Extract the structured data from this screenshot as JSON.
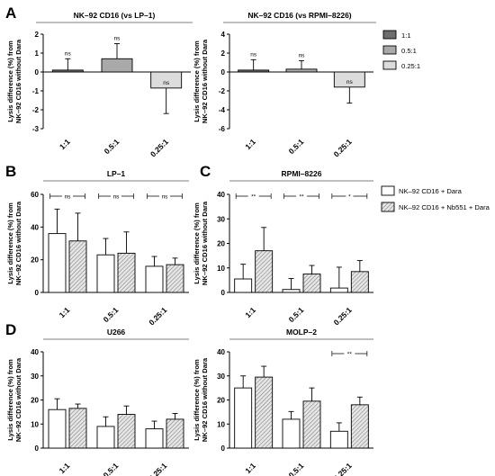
{
  "panel_letters": [
    "A",
    "B",
    "C",
    "D"
  ],
  "colors": {
    "dark": "#6e6e6e",
    "mid": "#a9a9a9",
    "light": "#dcdcdc",
    "open": "#ffffff",
    "hatch": "#cfcfcf"
  },
  "legend_A": [
    {
      "label": "1:1",
      "fill": "dark"
    },
    {
      "label": "0.5:1",
      "fill": "mid"
    },
    {
      "label": "0.25:1",
      "fill": "light"
    }
  ],
  "legend_BCD": [
    {
      "label": "NK–92 CD16 + Dara",
      "fill": "open"
    },
    {
      "label": "NK–92 CD16 + Nb551 + Dara",
      "fill": "hatch"
    }
  ],
  "chart_data": [
    {
      "id": "A1",
      "type": "bar",
      "title": "NK–92 CD16 (vs LP–1)",
      "ylabel": [
        "Lysis difference (%) from",
        "NK–92 CD16 without Dara"
      ],
      "ylim": [
        -3,
        2
      ],
      "yticks": [
        2,
        1,
        0,
        -1,
        -2,
        -3
      ],
      "categories": [
        "1:1",
        "0.5:1",
        "0.25:1"
      ],
      "series": [
        {
          "values": [
            0.1,
            0.7,
            -0.85
          ],
          "errors": [
            0.6,
            0.8,
            1.35
          ],
          "fills": [
            "dark",
            "mid",
            "light"
          ]
        }
      ],
      "significance": [
        "ns",
        "ns",
        "ns"
      ]
    },
    {
      "id": "A2",
      "type": "bar",
      "title": "NK–92 CD16 (vs RPMI–8226)",
      "ylabel": [
        "Lysis difference (%) from",
        "NK–92 CD16 without Dara"
      ],
      "ylim": [
        -6,
        4
      ],
      "yticks": [
        4,
        2,
        0,
        -2,
        -4,
        -6
      ],
      "categories": [
        "1:1",
        "0.5:1",
        "0.25:1"
      ],
      "series": [
        {
          "values": [
            0.2,
            0.3,
            -1.6
          ],
          "errors": [
            1.1,
            0.9,
            1.7
          ],
          "fills": [
            "dark",
            "mid",
            "light"
          ]
        }
      ],
      "significance": [
        "ns",
        "ns",
        "ns"
      ]
    },
    {
      "id": "B",
      "type": "bar",
      "title": "LP–1",
      "ylabel": [
        "Lysis difference (%) from",
        "NK–92 CD16 without Dara"
      ],
      "ylim": [
        0,
        60
      ],
      "yticks": [
        60,
        40,
        20,
        0
      ],
      "categories": [
        "1:1",
        "0.5:1",
        "0.25:1"
      ],
      "series": [
        {
          "name": "NK–92 CD16 + Dara",
          "values": [
            36,
            23,
            16
          ],
          "errors": [
            15,
            10,
            6
          ],
          "fill": "open"
        },
        {
          "name": "NK–92 CD16 + Nb551 + Dara",
          "values": [
            31.5,
            24,
            17
          ],
          "errors": [
            17,
            13,
            4
          ],
          "fill": "hatch"
        }
      ],
      "significance": [
        "ns",
        "ns",
        "ns"
      ]
    },
    {
      "id": "C",
      "type": "bar",
      "title": "RPMI–8226",
      "ylabel": [
        "Lysis difference (%) from",
        "NK–92 CD16 without Dara"
      ],
      "ylim": [
        0,
        40
      ],
      "yticks": [
        40,
        30,
        20,
        10,
        0
      ],
      "categories": [
        "1:1",
        "0.5:1",
        "0.25:1"
      ],
      "series": [
        {
          "name": "NK–92 CD16 + Dara",
          "values": [
            5.5,
            1.2,
            1.8
          ],
          "errors": [
            6,
            4.5,
            8.5
          ],
          "fill": "open"
        },
        {
          "name": "NK–92 CD16 + Nb551 + Dara",
          "values": [
            17,
            7.5,
            8.5
          ],
          "errors": [
            9.5,
            3.5,
            4.5
          ],
          "fill": "hatch"
        }
      ],
      "significance": [
        "**",
        "**",
        "*"
      ]
    },
    {
      "id": "D1",
      "type": "bar",
      "title": "U266",
      "ylabel": [
        "Lysis difference (%) from",
        "NK–92 CD16 without Dara"
      ],
      "ylim": [
        0,
        40
      ],
      "yticks": [
        40,
        30,
        20,
        10,
        0
      ],
      "categories": [
        "1:1",
        "0.5:1",
        "0.25:1"
      ],
      "series": [
        {
          "name": "NK–92 CD16 + Dara",
          "values": [
            16,
            9,
            8
          ],
          "errors": [
            4.5,
            4,
            3.2
          ],
          "fill": "open"
        },
        {
          "name": "NK–92 CD16 + Nb551 + Dara",
          "values": [
            16.5,
            14,
            12
          ],
          "errors": [
            1.8,
            3.5,
            2.4
          ],
          "fill": "hatch"
        }
      ],
      "significance": []
    },
    {
      "id": "D2",
      "type": "bar",
      "title": "MOLP–2",
      "ylabel": [
        "Lysis difference (%) from",
        "NK–92 CD16 without Dara"
      ],
      "ylim": [
        0,
        40
      ],
      "yticks": [
        40,
        30,
        20,
        10,
        0
      ],
      "categories": [
        "1:1",
        "0.5:1",
        "0.25:1"
      ],
      "series": [
        {
          "name": "NK–92 CD16 + Dara",
          "values": [
            25,
            12,
            7
          ],
          "errors": [
            5,
            3.2,
            3.5
          ],
          "fill": "open"
        },
        {
          "name": "NK–92 CD16 + Nb551 + Dara",
          "values": [
            29.5,
            19.5,
            18
          ],
          "errors": [
            4.5,
            5.5,
            3.2
          ],
          "fill": "hatch"
        }
      ],
      "significance": [
        "",
        "",
        "**"
      ]
    }
  ]
}
